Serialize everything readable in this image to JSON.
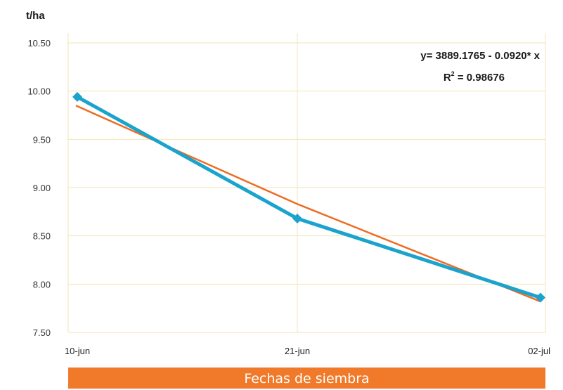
{
  "chart_data": {
    "type": "line",
    "ylabel": "t/ha",
    "xlabel": "Fechas de siembra",
    "categories": [
      "10-jun",
      "21-jun",
      "02-jul"
    ],
    "yticks": [
      "10.50",
      "10.00",
      "9.50",
      "9.00",
      "8.50",
      "8.00",
      "7.50"
    ],
    "ylim": [
      7.5,
      10.5
    ],
    "grid": true,
    "series": [
      {
        "values": [
          9.94,
          8.68,
          7.86
        ],
        "color": "#1aa3cc",
        "marker": "diamond"
      }
    ],
    "trendline": {
      "values": [
        9.85,
        8.83,
        7.82
      ],
      "color": "#ee6c24"
    },
    "annotation": {
      "equation": "y= 3889.1765 - 0.0920* x",
      "r2_prefix": "R",
      "r2_sup": "2",
      "r2_suffix": " = 0.98676"
    },
    "colors": {
      "grid": "#f2e6b4",
      "axis_text": "#333333",
      "xlabel_bar": "#f07a2a"
    }
  }
}
